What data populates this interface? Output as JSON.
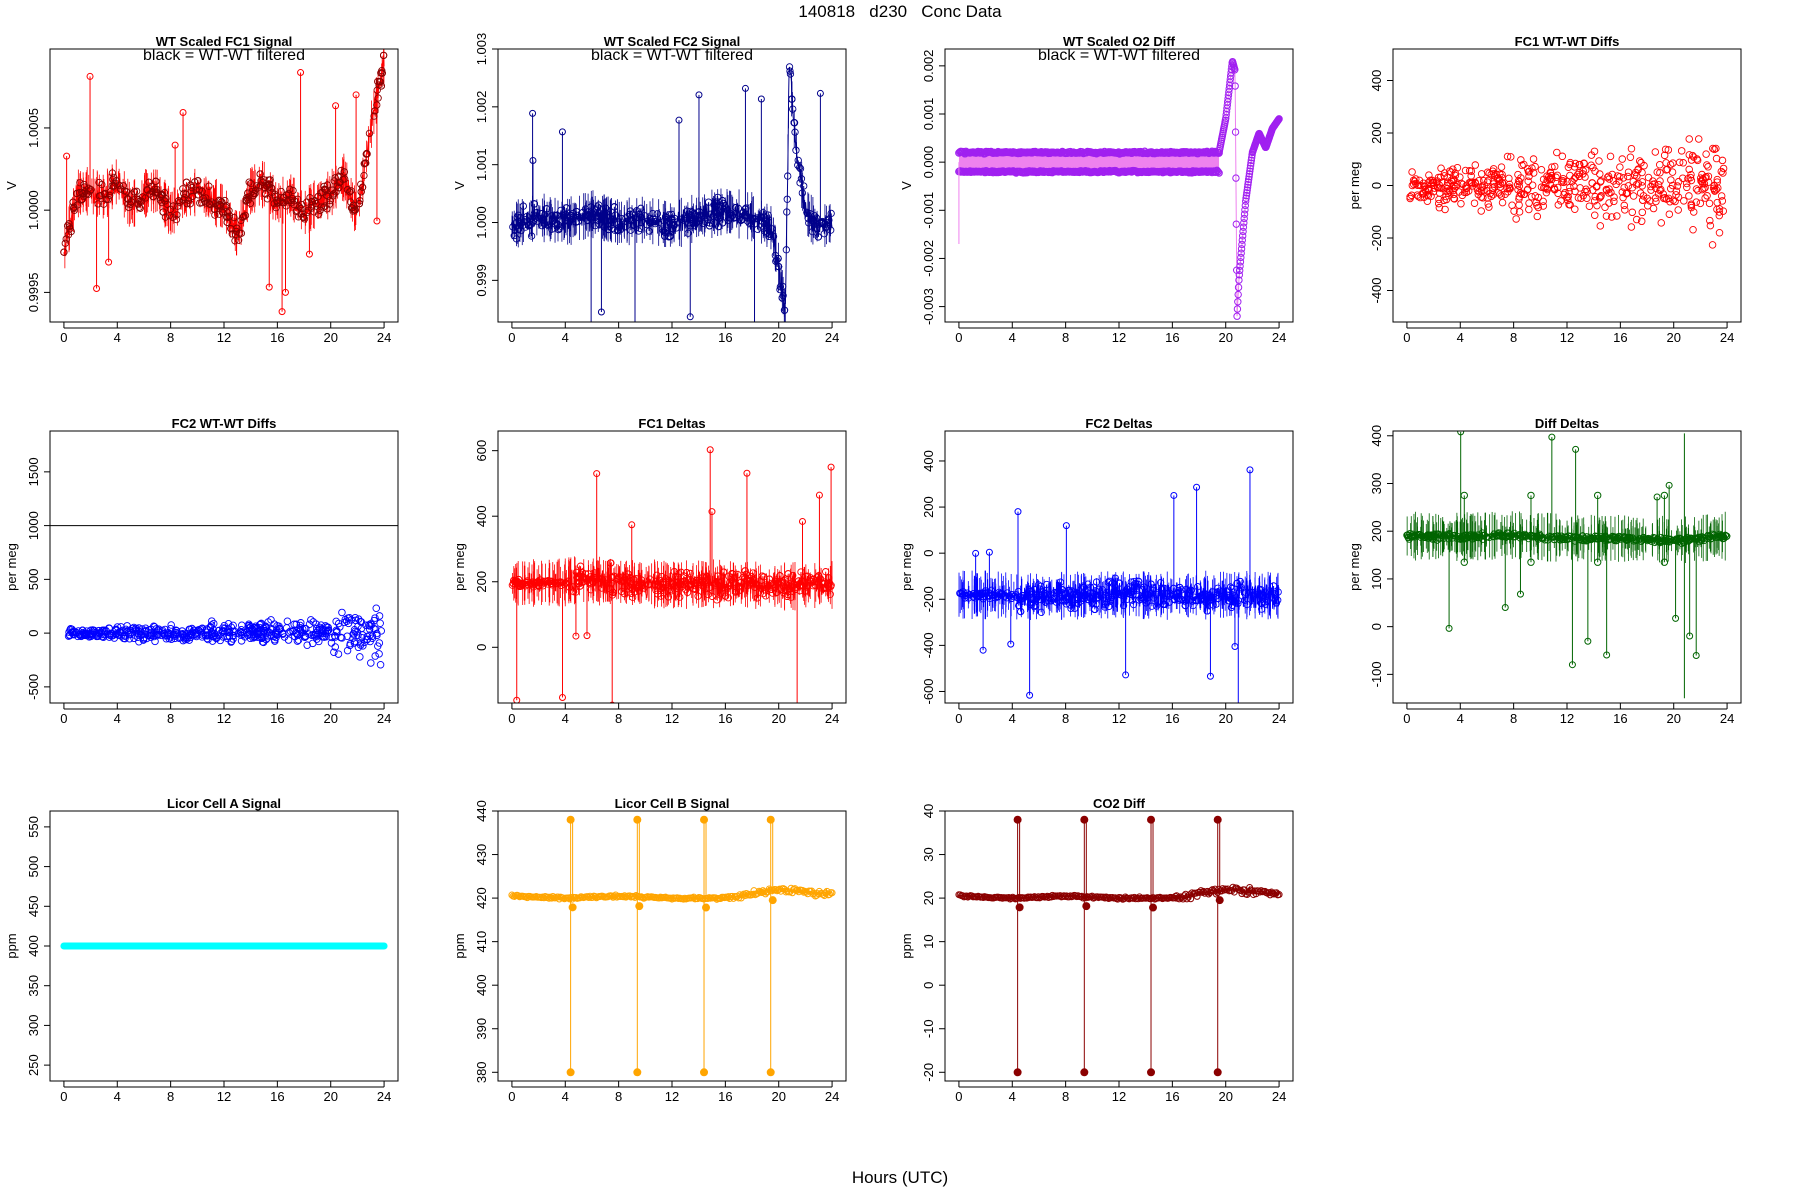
{
  "figure": {
    "title": "140818   d230   Conc Data",
    "xlabel": "Hours (UTC)"
  },
  "chart_data": [
    {
      "id": "p1",
      "type": "line",
      "title": "WT Scaled FC1 Signal",
      "annotation": "black = WT-WT filtered",
      "ylabel": "V",
      "xlim": [
        0,
        24
      ],
      "ylim": [
        0.99932,
        1.00098
      ],
      "xticks": [
        0,
        4,
        8,
        12,
        16,
        20,
        24
      ],
      "yticks": [
        0.9995,
        1.0,
        1.0005
      ],
      "ytick_labels": [
        "0.9995",
        "1.0000",
        "1.0005"
      ],
      "color": "#ff0000",
      "style": "noisy",
      "series": [
        {
          "name": "FC1",
          "x": [
            0,
            1,
            2,
            3,
            4,
            5,
            6,
            7,
            8,
            9,
            10,
            11,
            12,
            13,
            14,
            15,
            16,
            17,
            18,
            19,
            20,
            21,
            22,
            23,
            24
          ],
          "y": [
            0.99975,
            1.0001,
            1.00012,
            1.00008,
            1.00018,
            1.00002,
            1.0001,
            1.00012,
            0.99998,
            1.00005,
            1.00012,
            1.00006,
            1.00002,
            0.99985,
            1.00012,
            1.00016,
            1.00004,
            1.00009,
            0.99998,
            1.00005,
            1.0001,
            1.0002,
            0.99996,
            1.0005,
            1.0009
          ]
        }
      ]
    },
    {
      "id": "p2",
      "type": "line",
      "title": "WT Scaled FC2 Signal",
      "annotation": "black = WT-WT filtered",
      "ylabel": "V",
      "xlim": [
        0,
        24
      ],
      "ylim": [
        0.99828,
        1.003
      ],
      "xticks": [
        0,
        4,
        8,
        12,
        16,
        20,
        24
      ],
      "yticks": [
        0.999,
        1.0,
        1.001,
        1.002,
        1.003
      ],
      "ytick_labels": [
        "0.999",
        "1.000",
        "1.001",
        "1.002",
        "1.003"
      ],
      "color": "#00008b",
      "style": "noisy",
      "series": [
        {
          "name": "FC2",
          "x": [
            0,
            2,
            4,
            6,
            8,
            10,
            12,
            14,
            16,
            18,
            19.5,
            20.5,
            20.8,
            21.2,
            22,
            23,
            24
          ],
          "y": [
            0.99995,
            1.0001,
            1.0,
            1.00015,
            1.0,
            1.00005,
            0.99995,
            1.0001,
            1.0002,
            1.0001,
            0.9999,
            0.9985,
            1.0028,
            1.0015,
            1.0002,
            0.9999,
            1.0
          ]
        }
      ]
    },
    {
      "id": "p3",
      "type": "line",
      "title": "WT Scaled O2 Diff",
      "annotation": "black = WT-WT filtered",
      "ylabel": "V",
      "xlim": [
        0,
        24
      ],
      "ylim": [
        -0.00332,
        0.00235
      ],
      "xticks": [
        0,
        4,
        8,
        12,
        16,
        20,
        24
      ],
      "yticks": [
        -0.003,
        -0.002,
        -0.001,
        0.0,
        0.001,
        0.002
      ],
      "ytick_labels": [
        "-0.003",
        "-0.002",
        "-0.001",
        "0.000",
        "0.001",
        "0.002"
      ],
      "color": "#a020f0",
      "style": "band",
      "series": [
        {
          "name": "upper",
          "x": [
            0,
            19.5
          ],
          "y": [
            0.0002,
            0.0002
          ]
        },
        {
          "name": "lower",
          "x": [
            0,
            19.5
          ],
          "y": [
            -0.0002,
            -0.0002
          ]
        },
        {
          "name": "excursion",
          "x": [
            19.5,
            20,
            20.5,
            20.7,
            20.85,
            21,
            21.5,
            22,
            22.5,
            23,
            23.5,
            24
          ],
          "y": [
            0.0002,
            0.0009,
            0.0021,
            0.0019,
            -0.0032,
            -0.0024,
            -0.0008,
            0.0002,
            0.0006,
            0.0003,
            0.0007,
            0.0009
          ]
        }
      ]
    },
    {
      "id": "p4",
      "type": "scatter",
      "title": "FC1 WT-WT Diffs",
      "ylabel": "per meg",
      "xlim": [
        0,
        24
      ],
      "ylim": [
        -520,
        520
      ],
      "xticks": [
        0,
        4,
        8,
        12,
        16,
        20,
        24
      ],
      "yticks": [
        -400,
        -200,
        0,
        200,
        400
      ],
      "ytick_labels": [
        "-400",
        "-200",
        "0",
        "200",
        "400"
      ],
      "color": "#ff0000",
      "style": "cloud",
      "series": [
        {
          "name": "diffs",
          "x": [
            0,
            24
          ],
          "y": [
            0,
            0
          ]
        }
      ]
    },
    {
      "id": "p5",
      "type": "scatter",
      "title": "FC2 WT-WT Diffs",
      "ylabel": "per meg",
      "xlim": [
        0,
        24
      ],
      "ylim": [
        -650,
        1880
      ],
      "xticks": [
        0,
        4,
        8,
        12,
        16,
        20,
        24
      ],
      "yticks": [
        -500,
        0,
        500,
        1000,
        1500
      ],
      "ytick_labels": [
        "-500",
        "0",
        "500",
        "1000",
        "1500"
      ],
      "hline": 1000,
      "color": "#0000ff",
      "style": "cloud",
      "series": [
        {
          "name": "diffs",
          "x": [
            0,
            24
          ],
          "y": [
            0,
            0
          ]
        }
      ]
    },
    {
      "id": "p6",
      "type": "line",
      "title": "FC1 Deltas",
      "ylabel": "per meg",
      "xlim": [
        0,
        24
      ],
      "ylim": [
        -170,
        660
      ],
      "xticks": [
        0,
        4,
        8,
        12,
        16,
        20,
        24
      ],
      "yticks": [
        0,
        200,
        400,
        600
      ],
      "ytick_labels": [
        "0",
        "200",
        "400",
        "600"
      ],
      "color": "#ff0000",
      "style": "noisy",
      "series": [
        {
          "name": "FC1",
          "x": [
            0,
            4,
            4.3,
            8,
            12,
            16,
            20,
            24
          ],
          "y": [
            195,
            198,
            205,
            200,
            190,
            195,
            185,
            190
          ]
        }
      ]
    },
    {
      "id": "p7",
      "type": "line",
      "title": "FC2 Deltas",
      "ylabel": "per meg",
      "xlim": [
        0,
        24
      ],
      "ylim": [
        -650,
        530
      ],
      "xticks": [
        0,
        4,
        8,
        12,
        16,
        20,
        24
      ],
      "yticks": [
        -600,
        -400,
        -200,
        0,
        200,
        400
      ],
      "ytick_labels": [
        "-600",
        "-400",
        "-200",
        "0",
        "200",
        "400"
      ],
      "color": "#0000ff",
      "style": "noisy",
      "series": [
        {
          "name": "FC2",
          "x": [
            0,
            4,
            4.3,
            8,
            12,
            16,
            20,
            24
          ],
          "y": [
            -180,
            -182,
            -190,
            -185,
            -180,
            -185,
            -180,
            -185
          ]
        }
      ]
    },
    {
      "id": "p8",
      "type": "line",
      "title": "Diff Deltas",
      "ylabel": "per meg",
      "xlim": [
        0,
        24
      ],
      "ylim": [
        -160,
        410
      ],
      "xticks": [
        0,
        4,
        8,
        12,
        16,
        20,
        24
      ],
      "yticks": [
        -100,
        0,
        100,
        200,
        300,
        400
      ],
      "ytick_labels": [
        "-100",
        "0",
        "100",
        "200",
        "300",
        "400"
      ],
      "color": "#006400",
      "style": "noisy",
      "series": [
        {
          "name": "Diff",
          "x": [
            0,
            4,
            8,
            12,
            16,
            20,
            24
          ],
          "y": [
            190,
            188,
            192,
            185,
            185,
            180,
            190
          ]
        }
      ]
    },
    {
      "id": "p9",
      "type": "line",
      "title": "Licor Cell A Signal",
      "ylabel": "ppm",
      "xlim": [
        0,
        24
      ],
      "ylim": [
        230,
        570
      ],
      "xticks": [
        0,
        4,
        8,
        12,
        16,
        20,
        24
      ],
      "yticks": [
        250,
        300,
        350,
        400,
        450,
        500,
        550
      ],
      "ytick_labels": [
        "250",
        "300",
        "350",
        "400",
        "450",
        "500",
        "550"
      ],
      "color": "#00ffff",
      "style": "flat",
      "series": [
        {
          "name": "CellA",
          "x": [
            0,
            24
          ],
          "y": [
            400,
            400
          ]
        }
      ]
    },
    {
      "id": "p10",
      "type": "line",
      "title": "Licor Cell B Signal",
      "ylabel": "ppm",
      "xlim": [
        0,
        24
      ],
      "ylim": [
        378,
        440
      ],
      "xticks": [
        0,
        4,
        8,
        12,
        16,
        20,
        24
      ],
      "yticks": [
        380,
        390,
        400,
        410,
        420,
        430,
        440
      ],
      "ytick_labels": [
        "380",
        "390",
        "400",
        "410",
        "420",
        "430",
        "440"
      ],
      "color": "#ffa500",
      "style": "spikes",
      "spikes": [
        {
          "x": 4.4,
          "high": 438,
          "low": 380
        },
        {
          "x": 9.4,
          "high": 438,
          "low": 380
        },
        {
          "x": 14.4,
          "high": 438,
          "low": 380
        },
        {
          "x": 19.4,
          "high": 438,
          "low": 380
        }
      ],
      "series": [
        {
          "name": "CellB",
          "x": [
            0,
            4,
            8,
            12,
            16,
            18,
            20,
            24
          ],
          "y": [
            420.5,
            420,
            420.5,
            420,
            420,
            421,
            422,
            421
          ]
        }
      ]
    },
    {
      "id": "p11",
      "type": "line",
      "title": "CO2 Diff",
      "ylabel": "ppm",
      "xlim": [
        0,
        24
      ],
      "ylim": [
        -22,
        40
      ],
      "xticks": [
        0,
        4,
        8,
        12,
        16,
        20,
        24
      ],
      "yticks": [
        -20,
        -10,
        0,
        10,
        20,
        30,
        40
      ],
      "ytick_labels": [
        "-20",
        "-10",
        "0",
        "10",
        "20",
        "30",
        "40"
      ],
      "color": "#8b0000",
      "style": "spikes",
      "spikes": [
        {
          "x": 4.4,
          "high": 38,
          "low": -20
        },
        {
          "x": 9.4,
          "high": 38,
          "low": -20
        },
        {
          "x": 14.4,
          "high": 38,
          "low": -20
        },
        {
          "x": 19.4,
          "high": 38,
          "low": -20
        }
      ],
      "series": [
        {
          "name": "CO2",
          "x": [
            0,
            4,
            8,
            12,
            16,
            18,
            20,
            24
          ],
          "y": [
            20.5,
            20,
            20.5,
            20,
            20,
            21,
            22,
            21
          ]
        }
      ]
    }
  ]
}
